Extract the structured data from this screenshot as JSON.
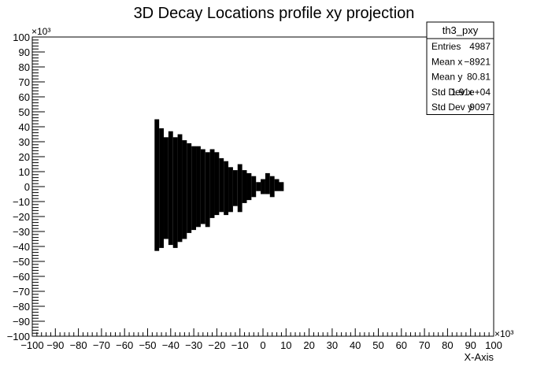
{
  "chart_data": {
    "type": "heatmap",
    "title": "3D Decay Locations profile xy projection",
    "xlabel": "X-Axis",
    "ylabel": "",
    "xlim": [
      -100,
      100
    ],
    "ylim": [
      -100,
      100
    ],
    "x_scale_label": "×10³",
    "y_scale_label": "×10³",
    "x_ticks": [
      "−100",
      "−90",
      "−80",
      "−70",
      "−60",
      "−50",
      "−40",
      "−30",
      "−20",
      "−10",
      "0",
      "10",
      "20",
      "30",
      "40",
      "50",
      "60",
      "70",
      "80",
      "90",
      "100"
    ],
    "y_ticks": [
      "−100",
      "−90",
      "−80",
      "−70",
      "−60",
      "−50",
      "−40",
      "−30",
      "−20",
      "−10",
      "0",
      "10",
      "20",
      "30",
      "40",
      "50",
      "60",
      "70",
      "80",
      "90",
      "100"
    ],
    "bin_width": 2,
    "filled_columns": [
      {
        "x": -46,
        "y_min": -42,
        "y_max": 44
      },
      {
        "x": -44,
        "y_min": -40,
        "y_max": 38
      },
      {
        "x": -42,
        "y_min": -34,
        "y_max": 32
      },
      {
        "x": -40,
        "y_min": -38,
        "y_max": 36
      },
      {
        "x": -38,
        "y_min": -40,
        "y_max": 32
      },
      {
        "x": -36,
        "y_min": -36,
        "y_max": 34
      },
      {
        "x": -34,
        "y_min": -34,
        "y_max": 30
      },
      {
        "x": -32,
        "y_min": -30,
        "y_max": 28
      },
      {
        "x": -30,
        "y_min": -28,
        "y_max": 26
      },
      {
        "x": -28,
        "y_min": -26,
        "y_max": 26
      },
      {
        "x": -26,
        "y_min": -24,
        "y_max": 24
      },
      {
        "x": -24,
        "y_min": -26,
        "y_max": 22
      },
      {
        "x": -22,
        "y_min": -20,
        "y_max": 24
      },
      {
        "x": -20,
        "y_min": -18,
        "y_max": 22
      },
      {
        "x": -18,
        "y_min": -16,
        "y_max": 18
      },
      {
        "x": -16,
        "y_min": -18,
        "y_max": 16
      },
      {
        "x": -14,
        "y_min": -16,
        "y_max": 12
      },
      {
        "x": -12,
        "y_min": -12,
        "y_max": 10
      },
      {
        "x": -10,
        "y_min": -16,
        "y_max": 14
      },
      {
        "x": -8,
        "y_min": -10,
        "y_max": 10
      },
      {
        "x": -6,
        "y_min": -8,
        "y_max": 8
      },
      {
        "x": -4,
        "y_min": -6,
        "y_max": 6
      },
      {
        "x": -2,
        "y_min": -2,
        "y_max": 2
      },
      {
        "x": 0,
        "y_min": -4,
        "y_max": 4
      },
      {
        "x": 2,
        "y_min": -4,
        "y_max": 8
      },
      {
        "x": 4,
        "y_min": -6,
        "y_max": 6
      },
      {
        "x": 6,
        "y_min": -2,
        "y_max": 4
      },
      {
        "x": 8,
        "y_min": -2,
        "y_max": 2
      }
    ],
    "stats": {
      "name": "th3_pxy",
      "rows": [
        {
          "label": "Entries",
          "value": "4987"
        },
        {
          "label": "Mean x",
          "value": "−8921"
        },
        {
          "label": "Mean y",
          "value": "80.81"
        },
        {
          "label": "Std Dev x",
          "value": "1.91e+04"
        },
        {
          "label": "Std Dev y",
          "value": "9097"
        }
      ]
    },
    "colors": {
      "fill": "#000000",
      "background": "#ffffff",
      "frame": "#000000"
    }
  }
}
